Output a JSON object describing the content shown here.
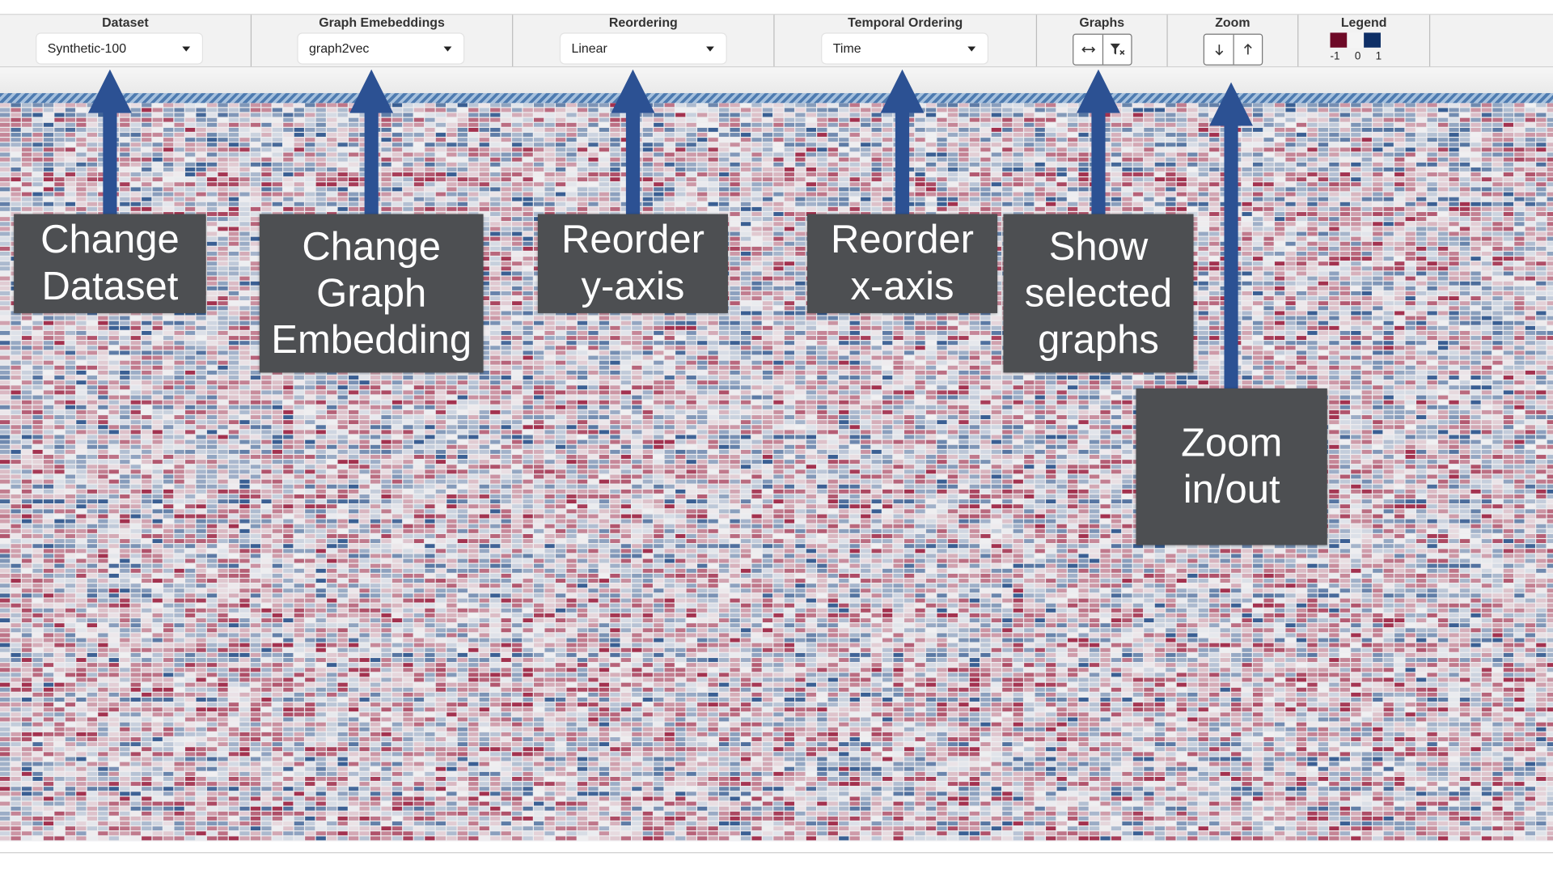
{
  "toolbar": {
    "dataset": {
      "title": "Dataset",
      "value": "Synthetic-100"
    },
    "graph_embeddings": {
      "title": "Graph Emebeddings",
      "value": "graph2vec"
    },
    "reordering": {
      "title": "Reordering",
      "value": "Linear"
    },
    "temporal_ordering": {
      "title": "Temporal Ordering",
      "value": "Time"
    },
    "graphs": {
      "title": "Graphs",
      "icons": [
        "horizontal-arrows-icon",
        "filter-clear-icon"
      ]
    },
    "zoom": {
      "title": "Zoom",
      "icons": [
        "arrow-down-icon",
        "arrow-up-icon"
      ]
    },
    "legend": {
      "title": "Legend",
      "labels": [
        "-1",
        "0",
        "1"
      ],
      "colors": [
        "#6e0a27",
        "#f4f4f4",
        "#0e2f66"
      ]
    }
  },
  "annotations": [
    {
      "text": "Change\nDataset"
    },
    {
      "text": "Change\nGraph\nEmbedding"
    },
    {
      "text": "Reorder\ny-axis"
    },
    {
      "text": "Reorder\nx-axis"
    },
    {
      "text": "Show\nselected\ngraphs"
    },
    {
      "text": "Zoom\nin/out"
    }
  ],
  "colors": {
    "arrow": "#2c5193",
    "callout": "#4d4f52",
    "negative": "#a3324f",
    "positive": "#3a5f93"
  }
}
